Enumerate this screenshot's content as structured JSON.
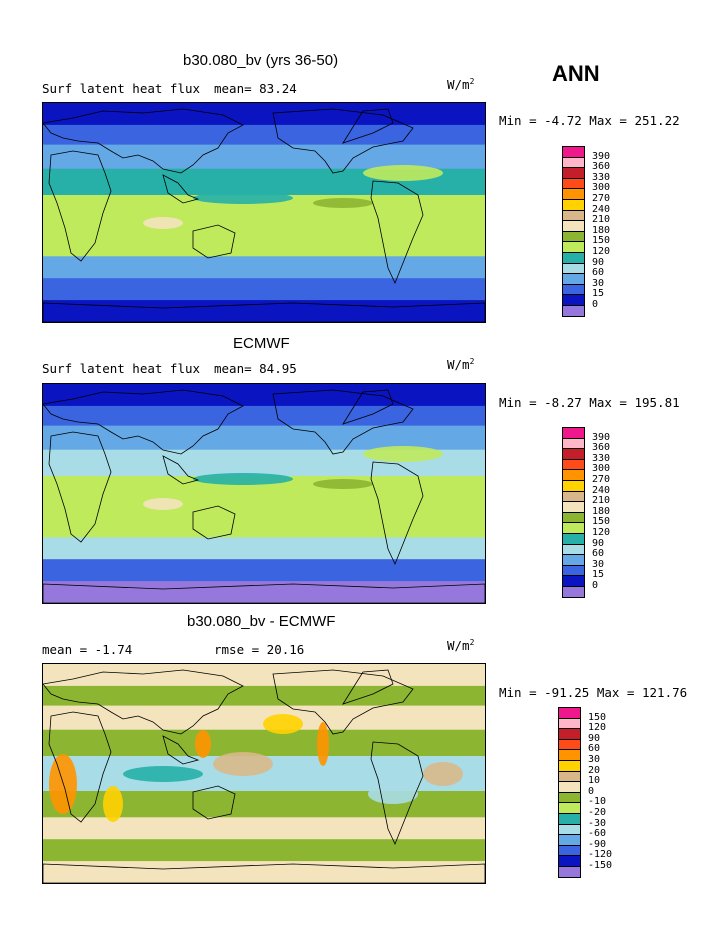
{
  "season": "ANN",
  "panels": [
    {
      "title": "b30.080_bv (yrs 36-50)",
      "variable": "Surf latent heat flux",
      "stat_text": "mean=  83.24",
      "units": "W/m",
      "units_exp": "2",
      "minmax": "Min =  -4.72 Max = 251.22",
      "levels": [
        "390",
        "360",
        "330",
        "300",
        "270",
        "240",
        "210",
        "180",
        "150",
        "120",
        "90",
        "60",
        "30",
        "15",
        "0"
      ],
      "colors": [
        "#f0168c",
        "#ffb6c8",
        "#c41e2a",
        "#ff4a1a",
        "#ff9400",
        "#ffd200",
        "#d8b88a",
        "#f4e4be",
        "#8cb632",
        "#bfea5c",
        "#26b0a8",
        "#a8dce6",
        "#64a8e6",
        "#3a64e0",
        "#0a14c0",
        "#9678dc"
      ]
    },
    {
      "title": "ECMWF",
      "variable": "Surf latent heat flux",
      "stat_text": "mean=  84.95",
      "units": "W/m",
      "units_exp": "2",
      "minmax": "Min =  -8.27 Max = 195.81",
      "levels": [
        "390",
        "360",
        "330",
        "300",
        "270",
        "240",
        "210",
        "180",
        "150",
        "120",
        "90",
        "60",
        "30",
        "15",
        "0"
      ],
      "colors": [
        "#f0168c",
        "#ffb6c8",
        "#c41e2a",
        "#ff4a1a",
        "#ff9400",
        "#ffd200",
        "#d8b88a",
        "#f4e4be",
        "#8cb632",
        "#bfea5c",
        "#26b0a8",
        "#a8dce6",
        "#64a8e6",
        "#3a64e0",
        "#0a14c0",
        "#9678dc"
      ]
    },
    {
      "title": "b30.080_bv - ECMWF",
      "variable": "mean =  -1.74",
      "stat_text": "rmse =  20.16",
      "units": "W/m",
      "units_exp": "2",
      "minmax": "Min = -91.25 Max = 121.76",
      "levels": [
        "150",
        "120",
        "90",
        "60",
        "30",
        "20",
        "10",
        "0",
        "-10",
        "-20",
        "-30",
        "-60",
        "-90",
        "-120",
        "-150"
      ],
      "colors": [
        "#f0168c",
        "#ffb6c8",
        "#c41e2a",
        "#ff4a1a",
        "#ff9400",
        "#ffd200",
        "#d8b88a",
        "#f4e4be",
        "#8cb632",
        "#bfea5c",
        "#26b0a8",
        "#a8dce6",
        "#64a8e6",
        "#3a64e0",
        "#0a14c0",
        "#9678dc"
      ]
    }
  ]
}
